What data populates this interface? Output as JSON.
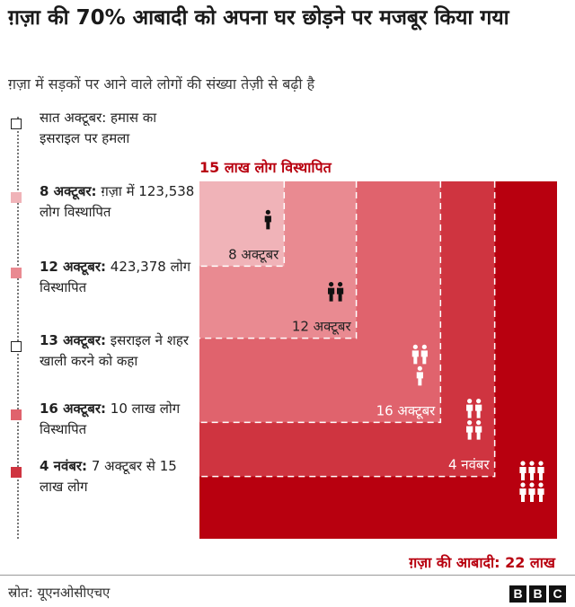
{
  "title": "ग़ज़ा की 70% आबादी को अपना घर छोड़ने पर मजबूर किया गया",
  "subtitle": "ग़ज़ा में सड़कों पर आने वाले लोगों की संख्या तेज़ी से बढ़ी है",
  "timeline": [
    {
      "date": "",
      "text": "सात अक्टूबर: हमास का इसराइल पर हमला",
      "marker": "#ffffff",
      "marker_border": "#222222"
    },
    {
      "date": "8 अक्टूबर:",
      "text": "ग़ज़ा में 123,538 लोग विस्थापित",
      "marker": "#f0b3b8",
      "marker_border": "#f0b3b8"
    },
    {
      "date": "12 अक्टूबर:",
      "text": "423,378 लोग विस्थापित",
      "marker": "#e98a91",
      "marker_border": "#e98a91"
    },
    {
      "date": "13 अक्टूबर:",
      "text": "इसराइल ने शहर खाली करने को कहा",
      "marker": "#ffffff",
      "marker_border": "#222222"
    },
    {
      "date": "16 अक्टूबर:",
      "text": "10 लाख लोग विस्थापित",
      "marker": "#e0636d",
      "marker_border": "#e0636d"
    },
    {
      "date": "4 नवंबर:",
      "text": "7 अक्टूबर से 15 लाख लोग",
      "marker": "#cf3440",
      "marker_border": "#cf3440"
    }
  ],
  "chart_data": {
    "type": "area",
    "title": "15 लाख लोग विस्थापित",
    "total_label": "ग़ज़ा की आबादी: 22 लाख",
    "population_total": 2200000,
    "series": [
      {
        "label": "8 अक्टूबर",
        "value": 123538,
        "color": "#f0b3b8",
        "people_icons": 1
      },
      {
        "label": "12 अक्टूबर",
        "value": 423378,
        "color": "#e98a91",
        "people_icons": 2
      },
      {
        "label": "16 अक्टूबर",
        "value": 1000000,
        "color": "#e0636d",
        "people_icons": 3
      },
      {
        "label": "4 नवंबर",
        "value": 1500000,
        "color": "#cf3440",
        "people_icons": 4
      },
      {
        "label": "",
        "value": 2200000,
        "color": "#b8000f",
        "people_icons": 6
      }
    ]
  },
  "source": "स्रोत: यूएनओसीएचए",
  "logo": [
    "B",
    "B",
    "C"
  ]
}
